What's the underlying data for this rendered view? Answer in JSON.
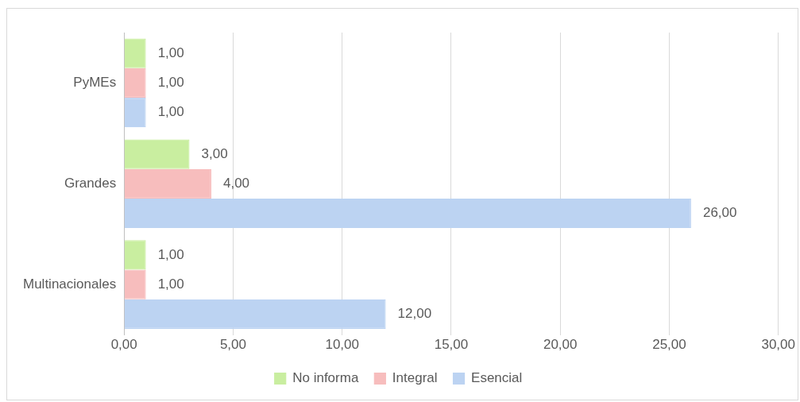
{
  "chart_data": {
    "type": "bar",
    "orientation": "horizontal",
    "categories": [
      "PyMEs",
      "Grandes",
      "Multinacionales"
    ],
    "series": [
      {
        "name": "No informa",
        "color": "#c9eea0",
        "values": [
          1,
          3,
          1
        ],
        "value_labels": [
          "1,00",
          "3,00",
          "1,00"
        ]
      },
      {
        "name": "Integral",
        "color": "#f7bdbd",
        "values": [
          1,
          4,
          1
        ],
        "value_labels": [
          "1,00",
          "4,00",
          "1,00"
        ]
      },
      {
        "name": "Esencial",
        "color": "#bcd3f2",
        "values": [
          1,
          26,
          12
        ],
        "value_labels": [
          "1,00",
          "26,00",
          "12,00"
        ]
      }
    ],
    "xlim": [
      0,
      30
    ],
    "xticks": [
      {
        "value": 0,
        "label": "0,00"
      },
      {
        "value": 5,
        "label": "5,00"
      },
      {
        "value": 10,
        "label": "10,00"
      },
      {
        "value": 15,
        "label": "15,00"
      },
      {
        "value": 20,
        "label": "20,00"
      },
      {
        "value": 25,
        "label": "25,00"
      },
      {
        "value": 30,
        "label": "30,00"
      }
    ],
    "grid": "x",
    "legend": "bottom"
  }
}
